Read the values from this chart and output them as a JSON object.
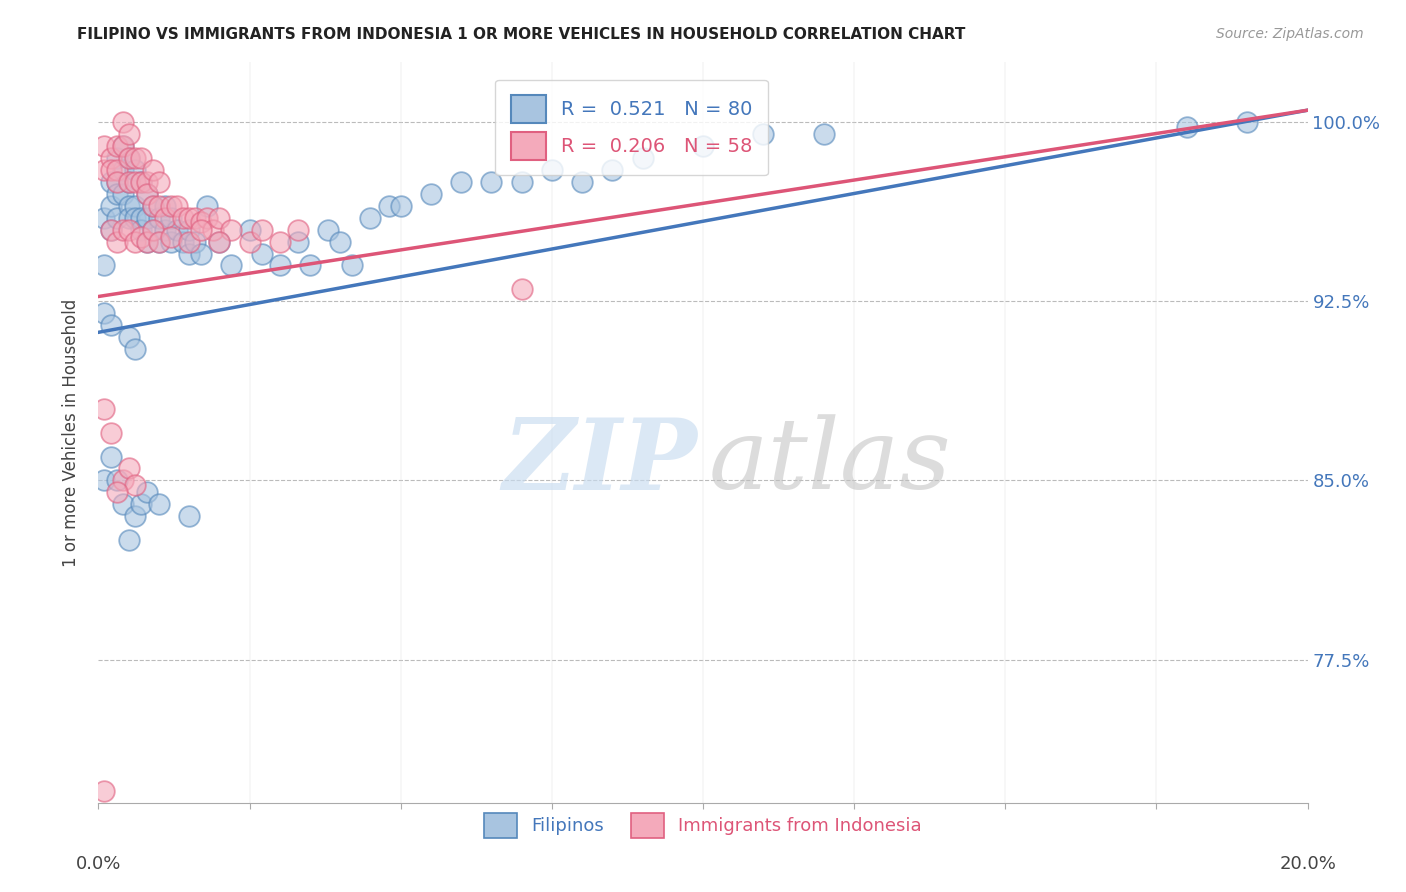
{
  "title": "FILIPINO VS IMMIGRANTS FROM INDONESIA 1 OR MORE VEHICLES IN HOUSEHOLD CORRELATION CHART",
  "source": "Source: ZipAtlas.com",
  "ylabel": "1 or more Vehicles in Household",
  "yticks": [
    0.775,
    0.85,
    0.925,
    1.0
  ],
  "ytick_labels": [
    "77.5%",
    "85.0%",
    "92.5%",
    "100.0%"
  ],
  "xmin": 0.0,
  "xmax": 0.2,
  "ymin": 0.715,
  "ymax": 1.025,
  "blue_R": 0.521,
  "blue_N": 80,
  "pink_R": 0.206,
  "pink_N": 58,
  "blue_color": "#A8C4E0",
  "pink_color": "#F4AABB",
  "blue_edge_color": "#5588BB",
  "pink_edge_color": "#E06080",
  "blue_line_color": "#4477BB",
  "pink_line_color": "#DD5577",
  "legend_label_blue": "Filipinos",
  "legend_label_pink": "Immigrants from Indonesia",
  "blue_line_x0": 0.0,
  "blue_line_y0": 0.912,
  "blue_line_x1": 0.2,
  "blue_line_y1": 1.005,
  "pink_line_x0": 0.0,
  "pink_line_y0": 0.927,
  "pink_line_x1": 0.2,
  "pink_line_y1": 1.005,
  "blue_scatter_x": [
    0.001,
    0.001,
    0.002,
    0.002,
    0.002,
    0.003,
    0.003,
    0.003,
    0.003,
    0.004,
    0.004,
    0.004,
    0.005,
    0.005,
    0.005,
    0.005,
    0.006,
    0.006,
    0.006,
    0.007,
    0.007,
    0.007,
    0.008,
    0.008,
    0.008,
    0.009,
    0.009,
    0.01,
    0.01,
    0.011,
    0.011,
    0.012,
    0.012,
    0.013,
    0.014,
    0.015,
    0.015,
    0.016,
    0.017,
    0.018,
    0.02,
    0.022,
    0.025,
    0.027,
    0.03,
    0.033,
    0.035,
    0.038,
    0.04,
    0.042,
    0.045,
    0.048,
    0.05,
    0.055,
    0.06,
    0.065,
    0.07,
    0.075,
    0.08,
    0.085,
    0.09,
    0.1,
    0.11,
    0.12,
    0.001,
    0.002,
    0.003,
    0.004,
    0.005,
    0.006,
    0.007,
    0.008,
    0.01,
    0.015,
    0.001,
    0.002,
    0.005,
    0.006,
    0.18,
    0.19
  ],
  "blue_scatter_y": [
    0.96,
    0.94,
    0.975,
    0.965,
    0.955,
    0.985,
    0.975,
    0.97,
    0.96,
    0.99,
    0.98,
    0.97,
    0.985,
    0.975,
    0.965,
    0.96,
    0.98,
    0.965,
    0.96,
    0.975,
    0.96,
    0.955,
    0.97,
    0.96,
    0.95,
    0.965,
    0.955,
    0.96,
    0.95,
    0.965,
    0.955,
    0.96,
    0.95,
    0.955,
    0.95,
    0.955,
    0.945,
    0.95,
    0.945,
    0.965,
    0.95,
    0.94,
    0.955,
    0.945,
    0.94,
    0.95,
    0.94,
    0.955,
    0.95,
    0.94,
    0.96,
    0.965,
    0.965,
    0.97,
    0.975,
    0.975,
    0.975,
    0.98,
    0.975,
    0.98,
    0.985,
    0.99,
    0.995,
    0.995,
    0.85,
    0.86,
    0.85,
    0.84,
    0.825,
    0.835,
    0.84,
    0.845,
    0.84,
    0.835,
    0.92,
    0.915,
    0.91,
    0.905,
    0.998,
    1.0
  ],
  "pink_scatter_x": [
    0.001,
    0.001,
    0.002,
    0.002,
    0.003,
    0.003,
    0.003,
    0.004,
    0.004,
    0.005,
    0.005,
    0.005,
    0.006,
    0.006,
    0.007,
    0.007,
    0.008,
    0.008,
    0.009,
    0.009,
    0.01,
    0.01,
    0.011,
    0.012,
    0.013,
    0.014,
    0.015,
    0.016,
    0.017,
    0.018,
    0.019,
    0.02,
    0.022,
    0.025,
    0.027,
    0.03,
    0.033,
    0.002,
    0.003,
    0.004,
    0.005,
    0.006,
    0.007,
    0.008,
    0.009,
    0.01,
    0.012,
    0.015,
    0.017,
    0.02,
    0.001,
    0.002,
    0.004,
    0.005,
    0.006,
    0.003,
    0.07,
    0.001
  ],
  "pink_scatter_y": [
    0.99,
    0.98,
    0.985,
    0.98,
    0.99,
    0.98,
    0.975,
    1.0,
    0.99,
    0.995,
    0.985,
    0.975,
    0.985,
    0.975,
    0.985,
    0.975,
    0.975,
    0.97,
    0.98,
    0.965,
    0.975,
    0.965,
    0.96,
    0.965,
    0.965,
    0.96,
    0.96,
    0.96,
    0.958,
    0.96,
    0.955,
    0.96,
    0.955,
    0.95,
    0.955,
    0.95,
    0.955,
    0.955,
    0.95,
    0.955,
    0.955,
    0.95,
    0.952,
    0.95,
    0.955,
    0.95,
    0.952,
    0.95,
    0.955,
    0.95,
    0.88,
    0.87,
    0.85,
    0.855,
    0.848,
    0.845,
    0.93,
    0.72
  ]
}
